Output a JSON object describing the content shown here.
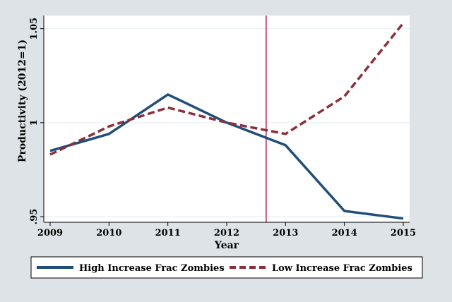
{
  "chart_data": {
    "type": "line",
    "xlabel": "Year",
    "ylabel": "Productivity (2012=1)",
    "x": [
      2009,
      2010,
      2011,
      2012,
      2013,
      2014,
      2015
    ],
    "x_tick_labels": [
      "2009",
      "2010",
      "2011",
      "2012",
      "2013",
      "2014",
      "2015"
    ],
    "xlim": [
      2009,
      2015
    ],
    "ylim": [
      0.947,
      1.057
    ],
    "y_ticks": [
      0.95,
      1.0,
      1.05
    ],
    "y_tick_labels": [
      ".95",
      "1",
      "1.05"
    ],
    "reference_line_x": 2012.67,
    "grid": true,
    "legend_position": "bottom",
    "series": [
      {
        "name": "High Increase Frac Zombies",
        "values": [
          0.985,
          0.994,
          1.015,
          1.0,
          0.988,
          0.953,
          0.949
        ],
        "color": "#1f4e79",
        "style": "solid"
      },
      {
        "name": "Low Increase Frac Zombies",
        "values": [
          0.983,
          0.998,
          1.008,
          1.0,
          0.994,
          1.014,
          1.053
        ],
        "color": "#8b2f3a",
        "style": "dashed"
      }
    ],
    "colors": {
      "background": "#dde3e7",
      "plot_background": "#ffffff",
      "grid": "#e6ecf0",
      "reference_line": "#b01e5a"
    }
  }
}
